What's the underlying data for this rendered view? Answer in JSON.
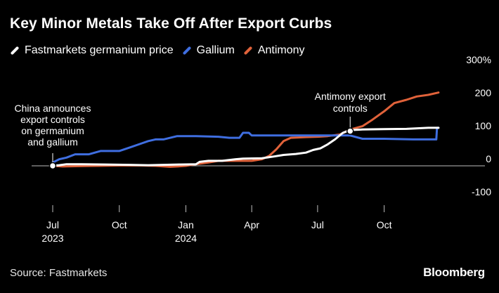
{
  "chart_data": {
    "type": "line",
    "title": "Key Minor Metals Take Off After Export Curbs",
    "xlabel": "",
    "ylabel": "",
    "y_unit": "%",
    "xlim": [
      "2023-07-01",
      "2024-12-20"
    ],
    "ylim": [
      -100,
      300
    ],
    "y_ticks": [
      300,
      200,
      100,
      0,
      -100
    ],
    "y_tick_labels": [
      "300%",
      "200",
      "100",
      "0",
      "-100"
    ],
    "x_ticks": [
      {
        "date": "2023-07-01",
        "label": "Jul",
        "sublabel": "2023"
      },
      {
        "date": "2023-10-01",
        "label": "Oct",
        "sublabel": ""
      },
      {
        "date": "2024-01-01",
        "label": "Jan",
        "sublabel": "2024"
      },
      {
        "date": "2024-04-01",
        "label": "Apr",
        "sublabel": ""
      },
      {
        "date": "2024-07-01",
        "label": "Jul",
        "sublabel": ""
      },
      {
        "date": "2024-10-01",
        "label": "Oct",
        "sublabel": ""
      }
    ],
    "grid": "zero-line only",
    "legend_position": "top-left",
    "series": [
      {
        "name": "Fastmarkets germanium price",
        "color": "#ffffff",
        "points": [
          [
            "2023-07-01",
            0
          ],
          [
            "2023-07-10",
            2
          ],
          [
            "2023-07-20",
            5
          ],
          [
            "2023-08-10",
            5
          ],
          [
            "2023-09-10",
            4
          ],
          [
            "2023-10-15",
            3
          ],
          [
            "2023-11-10",
            2
          ],
          [
            "2023-12-01",
            3
          ],
          [
            "2023-12-25",
            4
          ],
          [
            "2024-01-15",
            5
          ],
          [
            "2024-01-20",
            12
          ],
          [
            "2024-02-01",
            15
          ],
          [
            "2024-02-20",
            15
          ],
          [
            "2024-03-10",
            20
          ],
          [
            "2024-03-20",
            22
          ],
          [
            "2024-04-15",
            23
          ],
          [
            "2024-05-01",
            28
          ],
          [
            "2024-05-15",
            33
          ],
          [
            "2024-06-01",
            36
          ],
          [
            "2024-06-15",
            40
          ],
          [
            "2024-06-25",
            48
          ],
          [
            "2024-07-05",
            53
          ],
          [
            "2024-07-15",
            65
          ],
          [
            "2024-07-25",
            80
          ],
          [
            "2024-08-05",
            100
          ],
          [
            "2024-08-15",
            108
          ],
          [
            "2024-09-01",
            110
          ],
          [
            "2024-10-01",
            111
          ],
          [
            "2024-11-01",
            112
          ],
          [
            "2024-12-01",
            115
          ],
          [
            "2024-12-15",
            115
          ]
        ]
      },
      {
        "name": "Gallium",
        "color": "#3f6ee0",
        "points": [
          [
            "2023-07-01",
            10
          ],
          [
            "2023-07-10",
            20
          ],
          [
            "2023-07-20",
            25
          ],
          [
            "2023-08-01",
            35
          ],
          [
            "2023-08-20",
            35
          ],
          [
            "2023-09-05",
            45
          ],
          [
            "2023-10-01",
            45
          ],
          [
            "2023-10-15",
            55
          ],
          [
            "2023-11-01",
            68
          ],
          [
            "2023-11-10",
            75
          ],
          [
            "2023-11-20",
            80
          ],
          [
            "2023-12-01",
            80
          ],
          [
            "2023-12-20",
            90
          ],
          [
            "2024-01-15",
            90
          ],
          [
            "2024-02-15",
            88
          ],
          [
            "2024-03-01",
            85
          ],
          [
            "2024-03-15",
            85
          ],
          [
            "2024-03-20",
            100
          ],
          [
            "2024-03-28",
            100
          ],
          [
            "2024-04-01",
            92
          ],
          [
            "2024-05-01",
            92
          ],
          [
            "2024-06-01",
            92
          ],
          [
            "2024-07-01",
            92
          ],
          [
            "2024-08-15",
            92
          ],
          [
            "2024-09-01",
            82
          ],
          [
            "2024-10-01",
            82
          ],
          [
            "2024-11-10",
            80
          ],
          [
            "2024-12-01",
            80
          ],
          [
            "2024-12-12",
            80
          ],
          [
            "2024-12-13",
            115
          ],
          [
            "2024-12-15",
            115
          ]
        ]
      },
      {
        "name": "Antimony",
        "color": "#e0623a",
        "points": [
          [
            "2023-07-01",
            0
          ],
          [
            "2023-07-15",
            -2
          ],
          [
            "2023-08-01",
            -1
          ],
          [
            "2023-09-01",
            0
          ],
          [
            "2023-10-01",
            1
          ],
          [
            "2023-11-01",
            1
          ],
          [
            "2023-11-20",
            0
          ],
          [
            "2023-12-10",
            -3
          ],
          [
            "2023-12-20",
            -2
          ],
          [
            "2024-01-01",
            0
          ],
          [
            "2024-01-15",
            5
          ],
          [
            "2024-02-01",
            10
          ],
          [
            "2024-02-15",
            15
          ],
          [
            "2024-03-15",
            15
          ],
          [
            "2024-04-01",
            15
          ],
          [
            "2024-04-15",
            20
          ],
          [
            "2024-04-25",
            30
          ],
          [
            "2024-05-05",
            50
          ],
          [
            "2024-05-15",
            75
          ],
          [
            "2024-05-25",
            85
          ],
          [
            "2024-06-15",
            87
          ],
          [
            "2024-07-01",
            88
          ],
          [
            "2024-07-15",
            90
          ],
          [
            "2024-08-01",
            95
          ],
          [
            "2024-08-15",
            110
          ],
          [
            "2024-09-01",
            120
          ],
          [
            "2024-09-15",
            140
          ],
          [
            "2024-10-01",
            165
          ],
          [
            "2024-10-15",
            190
          ],
          [
            "2024-11-01",
            200
          ],
          [
            "2024-11-15",
            210
          ],
          [
            "2024-12-01",
            215
          ],
          [
            "2024-12-15",
            222
          ]
        ]
      }
    ],
    "annotations": [
      {
        "text": [
          "China announces",
          "export controls",
          "on germanium",
          "and gallium"
        ],
        "point": [
          "2023-07-01",
          0
        ]
      },
      {
        "text": [
          "Antimony export",
          "controls"
        ],
        "point": [
          "2024-08-15",
          105
        ]
      }
    ]
  },
  "source": "Source: Fastmarkets",
  "brand": "Bloomberg"
}
